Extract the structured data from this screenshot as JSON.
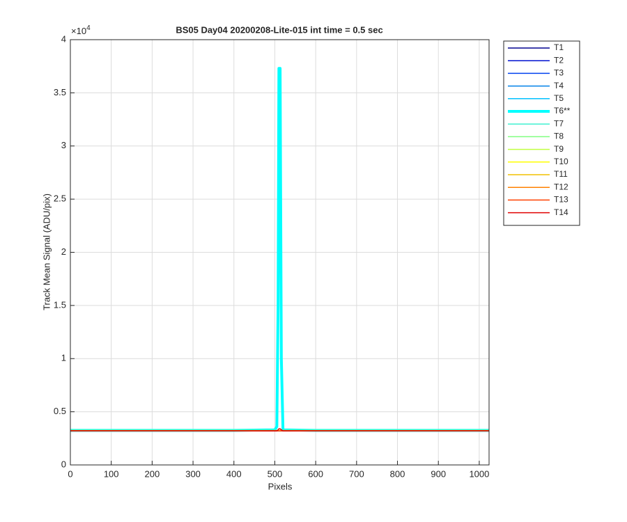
{
  "chart_data": {
    "type": "line",
    "title": "BS05 Day04 20200208-Lite-015 int time = 0.5 sec",
    "xlabel": "Pixels",
    "ylabel": "Track Mean Signal (ADU/pix)",
    "y_multiplier": {
      "base": "×10",
      "power": "4"
    },
    "x": [
      0,
      200,
      400,
      500,
      505,
      508,
      510,
      513,
      516,
      520,
      600,
      800,
      1024
    ],
    "xlim": [
      0,
      1024
    ],
    "xticks": [
      0,
      100,
      200,
      300,
      400,
      500,
      600,
      700,
      800,
      900,
      1000
    ],
    "ylim": [
      0,
      4
    ],
    "yticks": [
      0,
      0.5,
      1,
      1.5,
      2,
      2.5,
      3,
      3.5,
      4
    ],
    "grid": true,
    "legend": "outside-right",
    "series": [
      {
        "name": "T1",
        "color": "#00008f",
        "width": 1.5,
        "values": [
          0.32,
          0.32,
          0.32,
          0.32,
          0.32,
          0.32,
          0.32,
          0.32,
          0.32,
          0.32,
          0.32,
          0.32,
          0.32
        ]
      },
      {
        "name": "T2",
        "color": "#0010d0",
        "width": 1.5,
        "values": [
          0.321,
          0.321,
          0.321,
          0.321,
          0.321,
          0.321,
          0.321,
          0.321,
          0.321,
          0.321,
          0.321,
          0.321,
          0.321
        ]
      },
      {
        "name": "T3",
        "color": "#0040f0",
        "width": 1.5,
        "values": [
          0.322,
          0.322,
          0.322,
          0.322,
          0.322,
          0.322,
          0.322,
          0.322,
          0.322,
          0.322,
          0.322,
          0.322,
          0.322
        ]
      },
      {
        "name": "T4",
        "color": "#0080e8",
        "width": 1.5,
        "values": [
          0.322,
          0.322,
          0.322,
          0.322,
          0.322,
          0.322,
          0.322,
          0.322,
          0.322,
          0.322,
          0.322,
          0.322,
          0.322
        ]
      },
      {
        "name": "T5",
        "color": "#00c0ff",
        "width": 1.5,
        "values": [
          0.323,
          0.323,
          0.323,
          0.323,
          0.323,
          0.323,
          0.323,
          0.323,
          0.323,
          0.323,
          0.323,
          0.323,
          0.323
        ]
      },
      {
        "name": "T6**",
        "color": "#00ffff",
        "width": 4,
        "values": [
          0.325,
          0.325,
          0.325,
          0.33,
          0.36,
          1.5,
          3.73,
          3.73,
          1.0,
          0.33,
          0.325,
          0.325,
          0.325
        ]
      },
      {
        "name": "T7",
        "color": "#40f0d0",
        "width": 1.5,
        "values": [
          0.324,
          0.324,
          0.324,
          0.324,
          0.324,
          0.324,
          0.324,
          0.324,
          0.324,
          0.324,
          0.324,
          0.324,
          0.324
        ]
      },
      {
        "name": "T8",
        "color": "#80ff80",
        "width": 1.5,
        "values": [
          0.324,
          0.324,
          0.324,
          0.324,
          0.324,
          0.324,
          0.324,
          0.324,
          0.324,
          0.324,
          0.324,
          0.324,
          0.324
        ]
      },
      {
        "name": "T9",
        "color": "#c0ff40",
        "width": 1.5,
        "values": [
          0.323,
          0.323,
          0.323,
          0.323,
          0.323,
          0.323,
          0.323,
          0.323,
          0.323,
          0.323,
          0.323,
          0.323,
          0.323
        ]
      },
      {
        "name": "T10",
        "color": "#ffff00",
        "width": 1.5,
        "values": [
          0.323,
          0.323,
          0.323,
          0.323,
          0.323,
          0.323,
          0.323,
          0.323,
          0.323,
          0.323,
          0.323,
          0.323,
          0.323
        ]
      },
      {
        "name": "T11",
        "color": "#f0c000",
        "width": 1.5,
        "values": [
          0.322,
          0.322,
          0.322,
          0.322,
          0.322,
          0.322,
          0.322,
          0.322,
          0.322,
          0.322,
          0.322,
          0.322,
          0.322
        ]
      },
      {
        "name": "T12",
        "color": "#ff8000",
        "width": 1.5,
        "values": [
          0.322,
          0.322,
          0.322,
          0.322,
          0.322,
          0.322,
          0.322,
          0.322,
          0.322,
          0.322,
          0.322,
          0.322,
          0.322
        ]
      },
      {
        "name": "T13",
        "color": "#ff4000",
        "width": 1.5,
        "values": [
          0.321,
          0.321,
          0.321,
          0.321,
          0.321,
          0.321,
          0.321,
          0.321,
          0.321,
          0.321,
          0.321,
          0.321,
          0.321
        ]
      },
      {
        "name": "T14",
        "color": "#e00000",
        "width": 1.5,
        "values": [
          0.321,
          0.321,
          0.321,
          0.321,
          0.321,
          0.33,
          0.34,
          0.34,
          0.33,
          0.321,
          0.321,
          0.321,
          0.321
        ]
      }
    ]
  }
}
